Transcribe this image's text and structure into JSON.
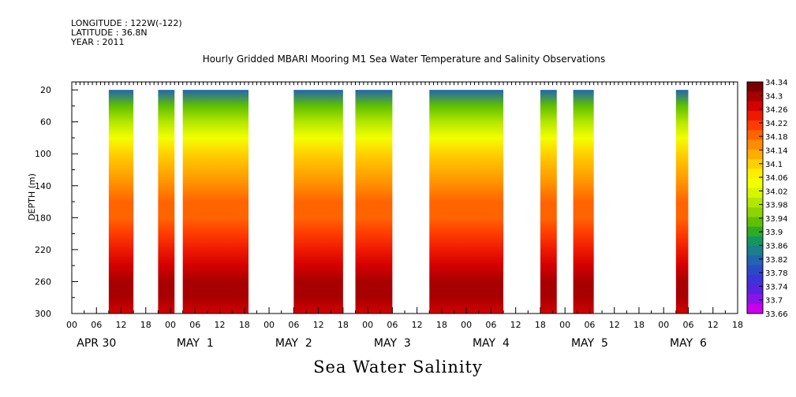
{
  "header": {
    "longitude": "LONGITUDE : 122W(-122)",
    "latitude": "LATITUDE : 36.8N",
    "year": "YEAR : 2011"
  },
  "chart_data": {
    "type": "heatmap",
    "title": "Hourly Gridded MBARI Mooring M1 Sea Water Temperature and Salinity Observations",
    "subtitle": "Sea Water Salinity",
    "ylabel": "DEPTH (m)",
    "xlabel": "",
    "ylim": [
      300,
      20
    ],
    "yticks": [
      20,
      60,
      100,
      140,
      180,
      220,
      260,
      300
    ],
    "x_hour_labels": [
      "00",
      "06",
      "12",
      "18",
      "00",
      "06",
      "12",
      "18",
      "00",
      "06",
      "12",
      "18",
      "00",
      "06",
      "12",
      "18",
      "00",
      "06",
      "12",
      "18",
      "00",
      "06",
      "12",
      "18",
      "00",
      "06",
      "12",
      "18",
      "00",
      "06",
      "12",
      "18",
      "00",
      "06",
      "12",
      "18",
      "00",
      "06",
      "12",
      "18",
      "00",
      "06",
      "12",
      "18",
      "00",
      "06",
      "12",
      "18",
      "00",
      "06",
      "12",
      "18",
      "00",
      "06",
      "12",
      "18",
      "00",
      "06",
      "12",
      "18",
      "00",
      "06",
      "12",
      "18",
      "00",
      "06",
      "12",
      "18",
      "00",
      "06",
      "12",
      "18",
      "00",
      "06",
      "12",
      "18",
      "00",
      "06",
      "12",
      "18",
      "00",
      "06",
      "12",
      "18",
      "00",
      "06",
      "12",
      "18",
      "00",
      "06",
      "12",
      "18"
    ],
    "x_day_labels": [
      "APR 30",
      "MAY  1",
      "MAY  2",
      "MAY  3",
      "MAY  4",
      "MAY  5",
      "MAY  6"
    ],
    "xlim_hours": [
      0,
      162
    ],
    "data_segments_hours": [
      [
        9,
        15
      ],
      [
        21,
        25
      ],
      [
        27,
        43
      ],
      [
        54,
        66
      ],
      [
        69,
        78
      ],
      [
        87,
        105
      ],
      [
        114,
        118
      ],
      [
        122,
        127
      ],
      [
        147,
        150
      ]
    ],
    "depth_profile": [
      {
        "depth": 20,
        "salinity": 33.82
      },
      {
        "depth": 40,
        "salinity": 33.92
      },
      {
        "depth": 60,
        "salinity": 34.0
      },
      {
        "depth": 80,
        "salinity": 34.05
      },
      {
        "depth": 100,
        "salinity": 34.09
      },
      {
        "depth": 120,
        "salinity": 34.13
      },
      {
        "depth": 140,
        "salinity": 34.16
      },
      {
        "depth": 160,
        "salinity": 34.18
      },
      {
        "depth": 180,
        "salinity": 34.19
      },
      {
        "depth": 200,
        "salinity": 34.21
      },
      {
        "depth": 220,
        "salinity": 34.24
      },
      {
        "depth": 240,
        "salinity": 34.28
      },
      {
        "depth": 260,
        "salinity": 34.31
      },
      {
        "depth": 280,
        "salinity": 34.29
      },
      {
        "depth": 300,
        "salinity": 34.27
      }
    ],
    "colorbar": {
      "levels": [
        "34.34",
        "34.3",
        "34.26",
        "34.22",
        "34.18",
        "34.14",
        "34.1",
        "34.06",
        "34.02",
        "33.98",
        "33.94",
        "33.9",
        "33.86",
        "33.82",
        "33.78",
        "33.74",
        "33.7",
        "33.66"
      ],
      "min": 33.66,
      "max": 34.34,
      "colors": [
        "#7a0000",
        "#a80000",
        "#d40000",
        "#ee1a00",
        "#ff3c00",
        "#ff6400",
        "#ff8c00",
        "#ffae00",
        "#ffd000",
        "#ffee00",
        "#f2ff00",
        "#d6f500",
        "#b4e600",
        "#8ed400",
        "#5fc000",
        "#2faa22",
        "#129660",
        "#1a7e8c",
        "#2264b0",
        "#2c4ac8",
        "#3c34d8",
        "#5a22e0",
        "#8a14e8",
        "#c800f0"
      ]
    }
  }
}
